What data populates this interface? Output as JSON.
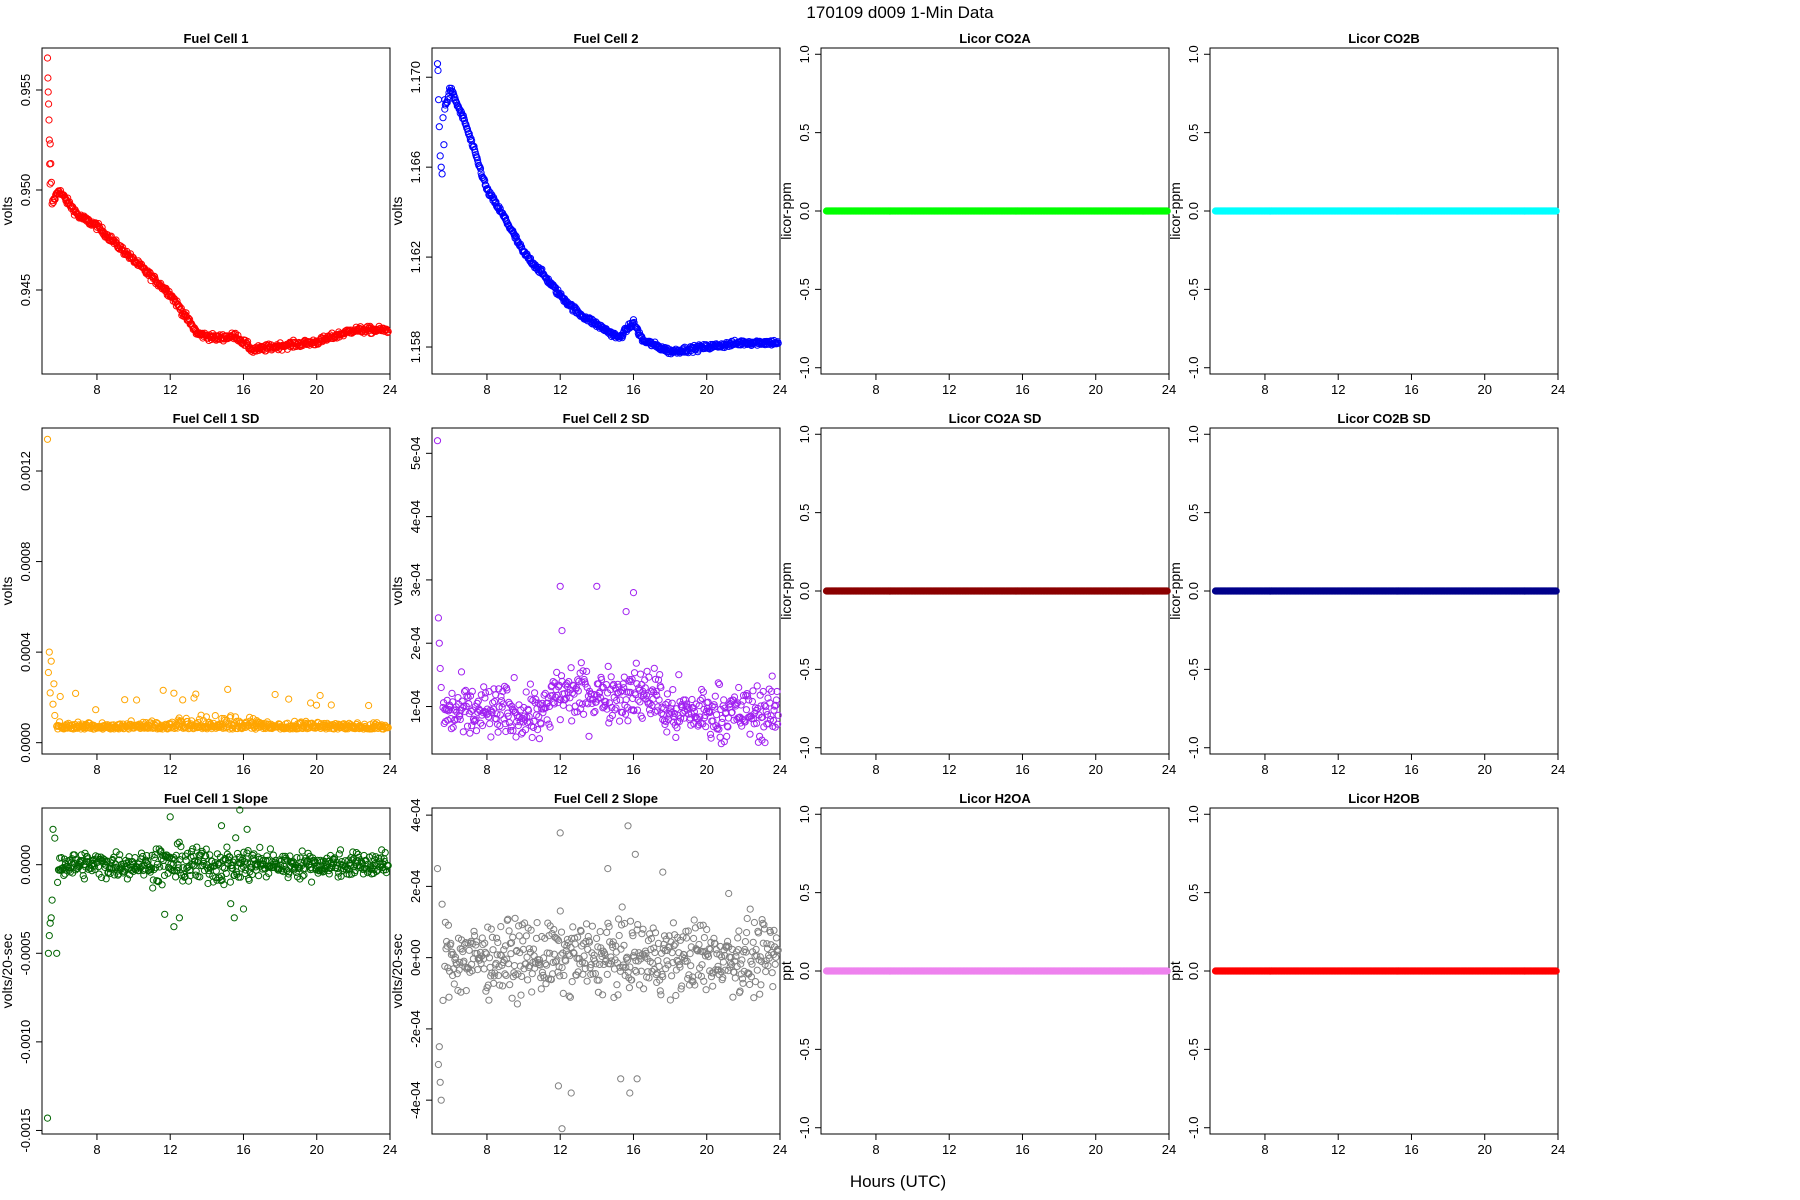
{
  "figure": {
    "title": "170109   d009   1-Min Data",
    "xlabel": "Hours (UTC)"
  },
  "chart_data": [
    {
      "type": "scatter",
      "title": "Fuel Cell 1",
      "ylabel": "volts",
      "color": "#ff0000",
      "xlim": [
        5,
        24
      ],
      "ylim": [
        0.9408,
        0.9571
      ],
      "xticks": [
        8,
        12,
        16,
        20,
        24
      ],
      "yticks": [
        0.945,
        0.95,
        0.955
      ],
      "ytick_labels": [
        "0.945",
        "0.950",
        "0.955"
      ],
      "pattern": "fc1",
      "trend": [
        [
          5.3,
          0.9566
        ],
        [
          5.55,
          0.9493
        ],
        [
          5.9,
          0.95
        ],
        [
          7,
          0.9487
        ],
        [
          8,
          0.9482
        ],
        [
          10,
          0.9465
        ],
        [
          12,
          0.9448
        ],
        [
          13.5,
          0.9428
        ],
        [
          14.5,
          0.9426
        ],
        [
          15.6,
          0.9427
        ],
        [
          16.5,
          0.942
        ],
        [
          18,
          0.9422
        ],
        [
          20,
          0.9424
        ],
        [
          22,
          0.943
        ],
        [
          23.9,
          0.943
        ]
      ]
    },
    {
      "type": "scatter",
      "title": "Fuel Cell 2",
      "ylabel": "volts",
      "color": "#0000ff",
      "xlim": [
        5,
        24
      ],
      "ylim": [
        1.1568,
        1.1713
      ],
      "xticks": [
        8,
        12,
        16,
        20,
        24
      ],
      "yticks": [
        1.158,
        1.162,
        1.166,
        1.17
      ],
      "ytick_labels": [
        "1.158",
        "1.162",
        "1.166",
        "1.170"
      ],
      "pattern": "fc2",
      "trend": [
        [
          5.3,
          1.1706
        ],
        [
          5.5,
          1.168
        ],
        [
          6,
          1.1695
        ],
        [
          6.8,
          1.168
        ],
        [
          8,
          1.165
        ],
        [
          9,
          1.1637
        ],
        [
          10,
          1.1622
        ],
        [
          11,
          1.1613
        ],
        [
          12,
          1.1603
        ],
        [
          13,
          1.1595
        ],
        [
          14,
          1.159
        ],
        [
          15.2,
          1.1584
        ],
        [
          16,
          1.1591
        ],
        [
          16.5,
          1.1583
        ],
        [
          18,
          1.1578
        ],
        [
          20,
          1.158
        ],
        [
          22,
          1.1582
        ],
        [
          23.9,
          1.1582
        ]
      ]
    },
    {
      "type": "scatter",
      "title": "Licor CO2A",
      "ylabel": "licor-ppm",
      "color": "#00ff00",
      "xlim": [
        5,
        24
      ],
      "ylim": [
        -1.04,
        1.04
      ],
      "xticks": [
        8,
        12,
        16,
        20,
        24
      ],
      "yticks": [
        -1,
        -0.5,
        0,
        0.5,
        1
      ],
      "ytick_labels": [
        "-1.0",
        "-0.5",
        "0.0",
        "0.5",
        "1.0"
      ],
      "pattern": "flat",
      "value": 0
    },
    {
      "type": "scatter",
      "title": "Licor CO2B",
      "ylabel": "licor-ppm",
      "color": "#00ffff",
      "xlim": [
        5,
        24
      ],
      "ylim": [
        -1.04,
        1.04
      ],
      "xticks": [
        8,
        12,
        16,
        20,
        24
      ],
      "yticks": [
        -1,
        -0.5,
        0,
        0.5,
        1
      ],
      "ytick_labels": [
        "-1.0",
        "-0.5",
        "0.0",
        "0.5",
        "1.0"
      ],
      "pattern": "flat",
      "value": 0
    },
    {
      "type": "scatter",
      "title": "Fuel Cell 1 SD",
      "ylabel": "volts",
      "color": "#ffa500",
      "xlim": [
        5,
        24
      ],
      "ylim": [
        -5e-05,
        0.00139
      ],
      "xticks": [
        8,
        12,
        16,
        20,
        24
      ],
      "yticks": [
        0,
        0.0004,
        0.0008,
        0.0012
      ],
      "ytick_labels": [
        "0.0000",
        "0.0004",
        "0.0008",
        "0.0012"
      ],
      "pattern": "fc1sd",
      "base": 6e-05,
      "spread": 2e-05
    },
    {
      "type": "scatter",
      "title": "Fuel Cell 2 SD",
      "ylabel": "volts",
      "color": "#a020f0",
      "xlim": [
        5,
        24
      ],
      "ylim": [
        2.5e-05,
        0.00054
      ],
      "xticks": [
        8,
        12,
        16,
        20,
        24
      ],
      "yticks": [
        0.0001,
        0.0002,
        0.0003,
        0.0004,
        0.0005
      ],
      "ytick_labels": [
        "1e-04",
        "2e-04",
        "3e-04",
        "4e-04",
        "5e-04"
      ],
      "pattern": "fc2sd",
      "base": 9e-05,
      "spread": 3e-05
    },
    {
      "type": "scatter",
      "title": "Licor CO2A SD",
      "ylabel": "licor-ppm",
      "color": "#8b0000",
      "xlim": [
        5,
        24
      ],
      "ylim": [
        -1.04,
        1.04
      ],
      "xticks": [
        8,
        12,
        16,
        20,
        24
      ],
      "yticks": [
        -1,
        -0.5,
        0,
        0.5,
        1
      ],
      "ytick_labels": [
        "-1.0",
        "-0.5",
        "0.0",
        "0.5",
        "1.0"
      ],
      "pattern": "flat",
      "value": 0
    },
    {
      "type": "scatter",
      "title": "Licor CO2B SD",
      "ylabel": "licor-ppm",
      "color": "#00008b",
      "xlim": [
        5,
        24
      ],
      "ylim": [
        -1.04,
        1.04
      ],
      "xticks": [
        8,
        12,
        16,
        20,
        24
      ],
      "yticks": [
        -1,
        -0.5,
        0,
        0.5,
        1
      ],
      "ytick_labels": [
        "-1.0",
        "-0.5",
        "0.0",
        "0.5",
        "1.0"
      ],
      "pattern": "flat",
      "value": 0
    },
    {
      "type": "scatter",
      "title": "Fuel Cell 1 Slope",
      "ylabel": "volts/20-sec",
      "color": "#006400",
      "xlim": [
        5,
        24
      ],
      "ylim": [
        -0.00152,
        0.00032
      ],
      "xticks": [
        8,
        12,
        16,
        20,
        24
      ],
      "yticks": [
        -0.0015,
        -0.001,
        -0.0005,
        0
      ],
      "ytick_labels": [
        "-0.0015",
        "-0.0010",
        "-0.0005",
        "0.0000"
      ],
      "pattern": "fc1slope",
      "spread": 5e-05
    },
    {
      "type": "scatter",
      "title": "Fuel Cell 2 Slope",
      "ylabel": "volts/20-sec",
      "color": "#808080",
      "xlim": [
        5,
        24
      ],
      "ylim": [
        -0.000495,
        0.00042
      ],
      "xticks": [
        8,
        12,
        16,
        20,
        24
      ],
      "yticks": [
        -0.0004,
        -0.0002,
        0,
        0.0002,
        0.0004
      ],
      "ytick_labels": [
        "-4e-04",
        "-2e-04",
        "0e+00",
        "2e-04",
        "4e-04"
      ],
      "pattern": "fc2slope",
      "spread": 7e-05
    },
    {
      "type": "scatter",
      "title": "Licor H2OA",
      "ylabel": "ppt",
      "color": "#ee82ee",
      "xlim": [
        5,
        24
      ],
      "ylim": [
        -1.04,
        1.04
      ],
      "xticks": [
        8,
        12,
        16,
        20,
        24
      ],
      "yticks": [
        -1,
        -0.5,
        0,
        0.5,
        1
      ],
      "ytick_labels": [
        "-1.0",
        "-0.5",
        "0.0",
        "0.5",
        "1.0"
      ],
      "pattern": "flat",
      "value": 0
    },
    {
      "type": "scatter",
      "title": "Licor H2OB",
      "ylabel": "ppt",
      "color": "#ff0000",
      "xlim": [
        5,
        24
      ],
      "ylim": [
        -1.04,
        1.04
      ],
      "xticks": [
        8,
        12,
        16,
        20,
        24
      ],
      "yticks": [
        -1,
        -0.5,
        0,
        0.5,
        1
      ],
      "ytick_labels": [
        "-1.0",
        "-0.5",
        "0.0",
        "0.5",
        "1.0"
      ],
      "pattern": "flat",
      "value": 0
    }
  ]
}
